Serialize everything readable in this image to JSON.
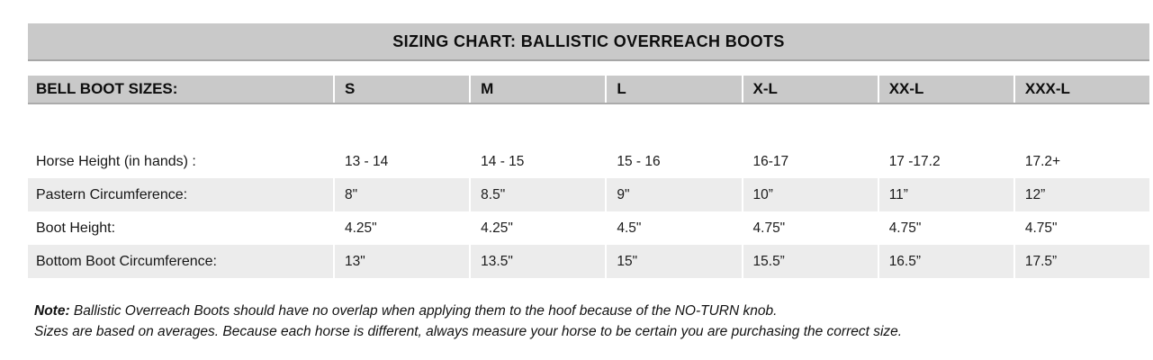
{
  "title": "SIZING CHART: BALLISTIC OVERREACH BOOTS",
  "table": {
    "header": {
      "label": "BELL BOOT SIZES:",
      "sizes": [
        "S",
        "M",
        "L",
        "X-L",
        "XX-L",
        "XXX-L"
      ]
    },
    "rows": [
      {
        "label": "Horse Height (in hands) :",
        "values": [
          "13 - 14",
          "14 - 15",
          "15 - 16",
          "16-17",
          "17 -17.2",
          "17.2+"
        ]
      },
      {
        "label": "Pastern Circumference:",
        "values": [
          "8\"",
          "8.5\"",
          "9\"",
          "10”",
          "11”",
          "12”"
        ]
      },
      {
        "label": "Boot Height:",
        "values": [
          "4.25\"",
          "4.25\"",
          "4.5\"",
          "4.75\"",
          "4.75\"",
          "4.75\""
        ]
      },
      {
        "label": "Bottom Boot Circumference:",
        "values": [
          "13\"",
          "13.5\"",
          "15\"",
          "15.5”",
          "16.5”",
          "17.5”"
        ]
      }
    ]
  },
  "note": {
    "prefix": "Note:",
    "line1": "Ballistic Overreach Boots should have no overlap when applying them to the hoof because of the NO-TURN knob.",
    "line2": "Sizes are based on averages. Because each horse is different, always measure your horse to be certain you are purchasing the correct size."
  },
  "colors": {
    "bar_gray": "#c9c9c9",
    "stripe_gray": "#ececec",
    "bar_border": "#a6a6a6",
    "text": "#161616"
  }
}
